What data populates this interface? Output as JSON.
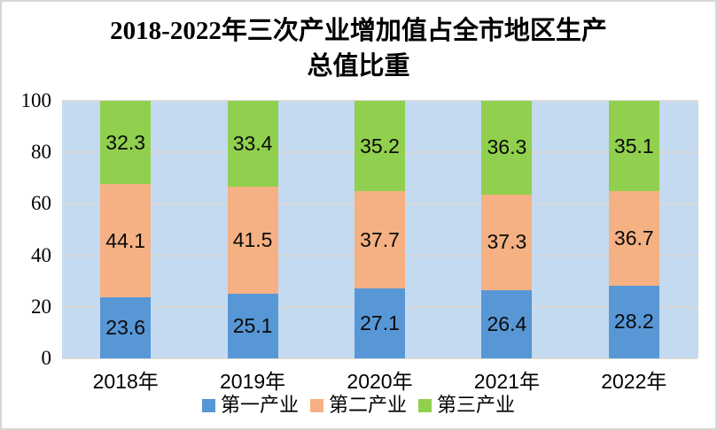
{
  "title": {
    "line1": "2018-2022年三次产业增加值占全市地区生产",
    "line2": "总值比重"
  },
  "chart_data": {
    "type": "bar",
    "stacked": true,
    "title": "2018-2022年三次产业增加值占全市地区生产总值比重",
    "categories": [
      "2018年",
      "2019年",
      "2020年",
      "2021年",
      "2022年"
    ],
    "series": [
      {
        "name": "第一产业",
        "color": "#5897d6",
        "values": [
          23.6,
          25.1,
          27.1,
          26.4,
          28.2
        ]
      },
      {
        "name": "第二产业",
        "color": "#f5b183",
        "values": [
          44.1,
          41.5,
          37.7,
          37.3,
          36.7
        ]
      },
      {
        "name": "第三产业",
        "color": "#90d04e",
        "values": [
          32.3,
          33.4,
          35.2,
          36.3,
          35.1
        ]
      }
    ],
    "xlabel": "",
    "ylabel": "",
    "ylim": [
      0,
      100
    ],
    "yticks": [
      0,
      20,
      40,
      60,
      80,
      100
    ],
    "grid": true,
    "legend_position": "bottom",
    "plot_bg": "#c4daf1",
    "gridline_color": "#d9d9d9",
    "data_label_color": "#0a0a0a"
  }
}
